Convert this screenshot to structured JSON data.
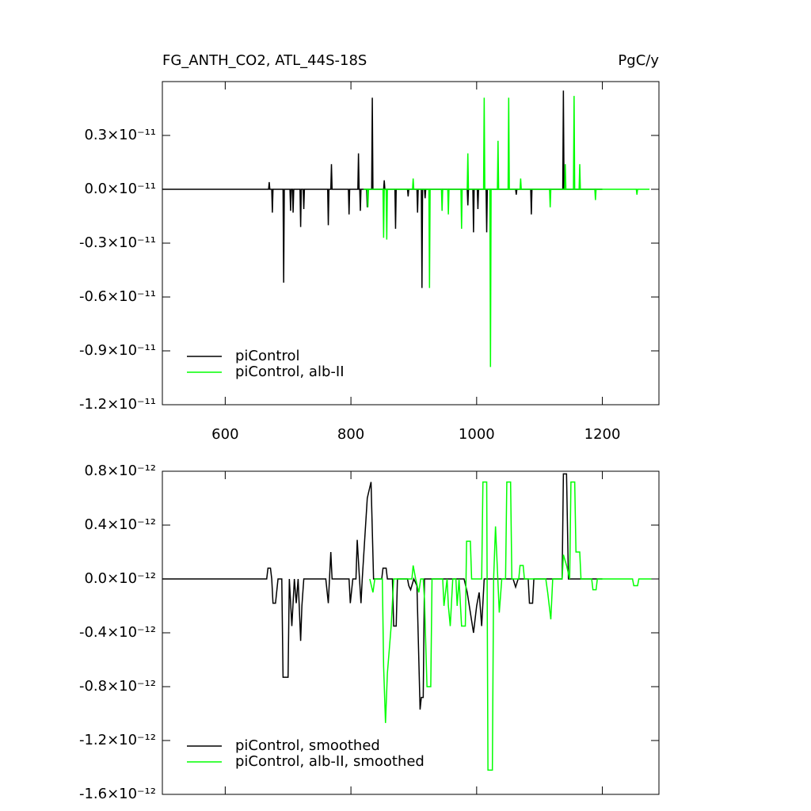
{
  "chart_data": [
    {
      "type": "line",
      "title": "FG_ANTH_CO2, ATL_44S-18S",
      "units": "PgC/y",
      "xlim": [
        500,
        1290
      ],
      "xticks": [
        600,
        800,
        1000,
        1200
      ],
      "ylim": [
        -1.2e-11,
        6e-12
      ],
      "yticks": [
        {
          "value": -1.2e-11,
          "label": "-1.2×10⁻¹¹"
        },
        {
          "value": -9e-12,
          "label": "-0.9×10⁻¹¹"
        },
        {
          "value": -6e-12,
          "label": "-0.6×10⁻¹¹"
        },
        {
          "value": -3e-12,
          "label": "-0.3×10⁻¹¹"
        },
        {
          "value": 0,
          "label": "0.0×10⁻¹¹"
        },
        {
          "value": 3e-12,
          "label": "0.3×10⁻¹¹"
        }
      ],
      "legend": "lower left",
      "series": [
        {
          "name": "piControl",
          "color": "#000000",
          "x": [
            500,
            669,
            670,
            671,
            674,
            675,
            676,
            692,
            693,
            694,
            703,
            704,
            705,
            707,
            708,
            709,
            719,
            720,
            721,
            724,
            725,
            726,
            763,
            764,
            765,
            768,
            769,
            770,
            796,
            797,
            798,
            811,
            812,
            813,
            814,
            815,
            816,
            825,
            826,
            827,
            833,
            834,
            835,
            852,
            853,
            854,
            870,
            871,
            872,
            890,
            891,
            892,
            905,
            906,
            907,
            912,
            913,
            914,
            917,
            918,
            919,
            985,
            986,
            987,
            994,
            995,
            996,
            1001,
            1002,
            1003,
            1015,
            1016,
            1017,
            1062,
            1063,
            1064,
            1086,
            1087,
            1088,
            1137,
            1138,
            1139,
            1200
          ],
          "values": [
            0,
            0,
            4e-13,
            0,
            0,
            -1.3e-12,
            0,
            0,
            -5.2e-12,
            0,
            0,
            -1.2e-12,
            0,
            0,
            -1.3e-12,
            0,
            0,
            -2.1e-12,
            0,
            0,
            -1.1e-12,
            0,
            0,
            -2e-12,
            0,
            0,
            1.4e-12,
            0,
            0,
            -1.4e-12,
            0,
            0,
            2e-12,
            0,
            0,
            -1.2e-12,
            0,
            0,
            -1e-12,
            0,
            0,
            5.1e-12,
            0,
            0,
            5e-13,
            0,
            0,
            -2.2e-12,
            0,
            0,
            -4e-13,
            0,
            0,
            -1.3e-12,
            0,
            0,
            -5.5e-12,
            0,
            0,
            -5e-13,
            0,
            0,
            -9e-13,
            0,
            0,
            -2.4e-12,
            0,
            0,
            -1.1e-12,
            0,
            0,
            -2.4e-12,
            0,
            0,
            -3e-13,
            0,
            0,
            -1.4e-12,
            0,
            0,
            5.5e-12,
            0,
            0
          ]
        },
        {
          "name": "piControl, alb-II",
          "color": "#00ff00",
          "x": [
            820,
            826,
            827,
            828,
            851,
            852,
            853,
            856,
            857,
            858,
            898,
            899,
            900,
            924,
            925,
            926,
            944,
            945,
            946,
            954,
            955,
            956,
            975,
            976,
            977,
            985,
            986,
            987,
            1011,
            1012,
            1013,
            1021,
            1022,
            1023,
            1033,
            1034,
            1035,
            1050,
            1051,
            1052,
            1069,
            1070,
            1071,
            1116,
            1117,
            1118,
            1140,
            1141,
            1142,
            1154,
            1155,
            1156,
            1163,
            1164,
            1165,
            1188,
            1189,
            1190,
            1254,
            1255,
            1256,
            1275
          ],
          "values": [
            0,
            0,
            -1e-12,
            0,
            0,
            -2.7e-12,
            0,
            0,
            -2.8e-12,
            0,
            0,
            6e-13,
            0,
            0,
            -5.5e-12,
            0,
            0,
            -1.2e-12,
            0,
            0,
            -1.4e-12,
            0,
            0,
            -2.2e-12,
            0,
            0,
            2e-12,
            0,
            0,
            5.1e-12,
            0,
            0,
            -9.9e-12,
            0,
            0,
            2.7e-12,
            0,
            0,
            5.1e-12,
            0,
            0,
            6e-13,
            0,
            0,
            -1e-12,
            0,
            0,
            1.4e-12,
            0,
            0,
            5.2e-12,
            0,
            0,
            1.4e-12,
            0,
            0,
            -6e-13,
            0,
            0,
            -3e-13,
            0,
            0
          ]
        }
      ]
    },
    {
      "type": "line",
      "xlim": [
        500,
        1290
      ],
      "xticks": [
        600,
        800,
        1000,
        1200
      ],
      "ylim": [
        -1.6e-12,
        8e-13
      ],
      "yticks": [
        {
          "value": -1.6e-12,
          "label": "-1.6×10⁻¹²"
        },
        {
          "value": -1.2e-12,
          "label": "-1.2×10⁻¹²"
        },
        {
          "value": -8e-13,
          "label": "-0.8×10⁻¹²"
        },
        {
          "value": -4e-13,
          "label": "-0.4×10⁻¹²"
        },
        {
          "value": 0,
          "label": "0.0×10⁻¹²"
        },
        {
          "value": 4e-13,
          "label": "0.4×10⁻¹²"
        },
        {
          "value": 8e-13,
          "label": "0.8×10⁻¹²"
        }
      ],
      "legend": "lower left",
      "series": [
        {
          "name": "piControl, smoothed",
          "color": "#000000",
          "x": [
            500,
            666,
            668,
            672,
            674,
            676,
            680,
            684,
            690,
            692,
            700,
            702,
            706,
            710,
            713,
            716,
            720,
            722,
            725,
            760,
            764,
            768,
            770,
            797,
            799,
            803,
            808,
            810,
            813,
            816,
            818,
            822,
            826,
            832,
            836,
            849,
            851,
            856,
            858,
            866,
            868,
            872,
            874,
            890,
            892,
            895,
            900,
            905,
            910,
            912,
            915,
            917,
            980,
            985,
            990,
            995,
            1000,
            1004,
            1008,
            1012,
            1058,
            1062,
            1066,
            1082,
            1084,
            1089,
            1091,
            1136,
            1138,
            1143,
            1146,
            1200
          ],
          "values": [
            0,
            0,
            8e-14,
            8e-14,
            0,
            -1.8e-13,
            -1.8e-13,
            0,
            0,
            -7.3e-13,
            -7.3e-13,
            0,
            -3.5e-13,
            0,
            -1.8e-13,
            0,
            -4.6e-13,
            -2e-13,
            0,
            0,
            -1.8e-13,
            2e-13,
            0,
            0,
            -1.8e-13,
            0,
            0,
            2.9e-13,
            5e-14,
            -1.8e-13,
            0,
            3e-13,
            6e-13,
            7.2e-13,
            0,
            0,
            8e-14,
            8e-14,
            0,
            0,
            -3.5e-13,
            -3.5e-13,
            0,
            0,
            -5e-14,
            -8e-14,
            0,
            -5e-14,
            -9.7e-13,
            -8.8e-13,
            -8.8e-13,
            0,
            0,
            -1e-13,
            -2.5e-13,
            -4e-13,
            -2e-13,
            -1e-13,
            -3.5e-13,
            0,
            0,
            -6e-14,
            0,
            0,
            -1.8e-13,
            -1.8e-13,
            0,
            0,
            7.8e-13,
            7.8e-13,
            0,
            0
          ]
        },
        {
          "name": "piControl, alb-II, smoothed",
          "color": "#00ff00",
          "x": [
            830,
            835,
            838,
            850,
            852,
            855,
            858,
            864,
            868,
            897,
            899,
            903,
            908,
            911,
            915,
            917,
            921,
            927,
            929,
            946,
            948,
            953,
            955,
            958,
            962,
            967,
            969,
            972,
            976,
            982,
            984,
            990,
            992,
            1008,
            1010,
            1016,
            1018,
            1025,
            1027,
            1030,
            1036,
            1040,
            1046,
            1048,
            1054,
            1056,
            1067,
            1069,
            1074,
            1076,
            1110,
            1113,
            1118,
            1121,
            1136,
            1138,
            1143,
            1148,
            1150,
            1156,
            1158,
            1164,
            1166,
            1183,
            1185,
            1190,
            1192,
            1248,
            1250,
            1256,
            1258,
            1278
          ],
          "values": [
            0,
            -1e-13,
            0,
            0,
            -6.5e-13,
            -1.07e-12,
            -7e-13,
            -3.5e-13,
            0,
            0,
            1e-13,
            0,
            -1e-13,
            0,
            0,
            -1.5e-13,
            -8e-13,
            -8e-13,
            0,
            0,
            -2e-13,
            0,
            -2e-13,
            -3.5e-13,
            0,
            0,
            -2e-13,
            0,
            -3.5e-13,
            -3.5e-13,
            2.8e-13,
            2.8e-13,
            0,
            0,
            7.2e-13,
            7.2e-13,
            -1.42e-12,
            -1.42e-12,
            0,
            3.9e-13,
            -2.5e-13,
            0,
            0,
            7.2e-13,
            7.2e-13,
            0,
            0,
            1e-13,
            1e-13,
            0,
            0,
            -1e-13,
            -3e-13,
            0,
            0,
            1.8e-13,
            1e-13,
            0,
            7.2e-13,
            7.2e-13,
            2e-13,
            2e-13,
            0,
            0,
            -8e-14,
            -8e-14,
            0,
            0,
            -5e-14,
            -5e-14,
            0,
            0
          ]
        }
      ]
    }
  ]
}
